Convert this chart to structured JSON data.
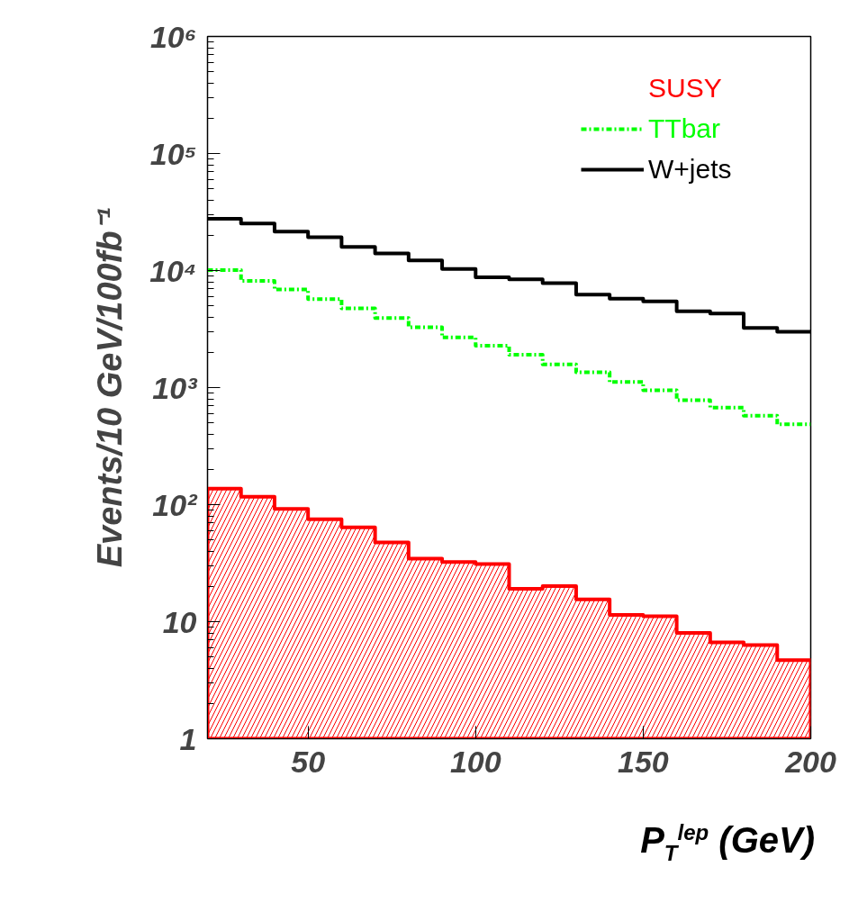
{
  "chart_data": {
    "type": "step",
    "xlabel": "P$_{T}$$^{lep}$ (GeV)",
    "ylabel": "Events/10 GeV/100fb⁻¹",
    "x": [
      20,
      30,
      40,
      50,
      60,
      70,
      80,
      90,
      100,
      110,
      120,
      130,
      140,
      150,
      160,
      170,
      180,
      190,
      200
    ],
    "series": [
      {
        "name": "SUSY",
        "type": "area",
        "color": "#ff0000",
        "line_style": "solid",
        "values": [
          137,
          117,
          92,
          75,
          64,
          47.5,
          34.5,
          32.3,
          31,
          19.1,
          20.1,
          15.5,
          11.4,
          11.1,
          8.0,
          6.65,
          6.3,
          4.7,
          4.7
        ]
      },
      {
        "name": "TTbar",
        "color": "#00ff00",
        "line_style": "dashed",
        "values": [
          10100,
          8150,
          6890,
          5700,
          4750,
          3930,
          3280,
          2690,
          2280,
          1910,
          1580,
          1350,
          1115,
          950,
          780,
          675,
          574,
          486,
          486
        ]
      },
      {
        "name": "W+jets",
        "color": "#000000",
        "line_style": "solid",
        "values": [
          27700,
          25200,
          21500,
          19300,
          15900,
          14000,
          12200,
          10300,
          8750,
          8400,
          7800,
          6220,
          5740,
          5460,
          4480,
          4290,
          3230,
          3000,
          3000
        ]
      }
    ],
    "log": true,
    "xlim": [
      20,
      200
    ],
    "xticks": [
      50,
      100,
      150,
      200
    ],
    "ylim": [
      1,
      1000000
    ],
    "yticks": [
      1,
      10,
      {
        "value": 100,
        "label": "10²"
      },
      {
        "value": 1000,
        "label": "10³"
      },
      {
        "value": 10000,
        "label": "10⁴"
      },
      {
        "value": 100000,
        "label": "10⁵"
      },
      {
        "value": 1000000,
        "label": "10⁶"
      }
    ],
    "grid": false,
    "legend": "top right"
  }
}
